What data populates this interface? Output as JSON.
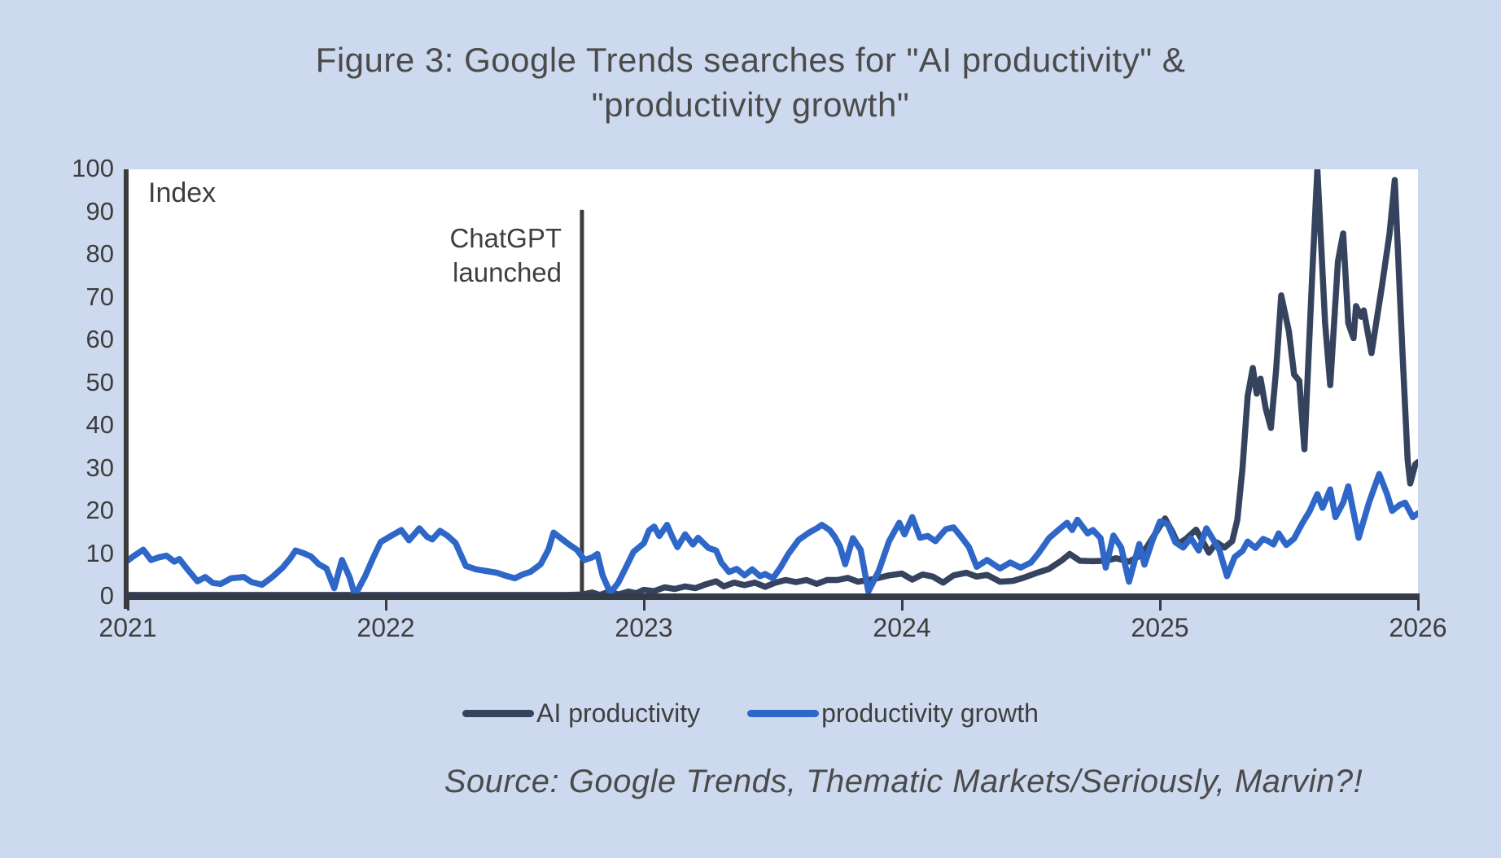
{
  "title": {
    "line1": "Figure 3: Google Trends searches for \"AI productivity\" &",
    "line2": "\"productivity growth\""
  },
  "axis": {
    "index_label": "Index",
    "y_ticks": [
      100,
      90,
      80,
      70,
      60,
      50,
      40,
      30,
      20,
      10,
      0
    ],
    "x_ticks": [
      2021,
      2022,
      2023,
      2024,
      2025,
      2026
    ]
  },
  "annotation": {
    "line1": "ChatGPT",
    "line2": "launched",
    "x_year": 2022.76,
    "top_value": 90.5,
    "line_color": "#3c3c3c"
  },
  "legend": [
    {
      "label": "AI productivity",
      "color": "#36435e"
    },
    {
      "label": "productivity growth",
      "color": "#2e67c8"
    }
  ],
  "source": "Source: Google Trends, Thematic Markets/Seriously, Marvin?!",
  "colors": {
    "background": "#cdd9ee",
    "plot_background": "#ffffff",
    "axis": "#3c3c3c",
    "text": "#3f3f3f",
    "title": "#4b4b4b",
    "ai_productivity": "#36435e",
    "productivity_growth": "#2e67c8"
  },
  "chart_data": {
    "type": "line",
    "title": "Figure 3: Google Trends searches for \"AI productivity\" & \"productivity growth\"",
    "xlabel": "",
    "ylabel": "Index",
    "x_range": [
      2021,
      2026
    ],
    "y_range": [
      0,
      100
    ],
    "grid": false,
    "legend_position": "bottom",
    "annotation": {
      "label": "ChatGPT launched",
      "x_year": 2022.76
    },
    "series": [
      {
        "name": "AI productivity",
        "color": "#36435e",
        "points": [
          [
            2021.0,
            0.4
          ],
          [
            2021.25,
            0.4
          ],
          [
            2021.5,
            0.4
          ],
          [
            2021.75,
            0.4
          ],
          [
            2022.0,
            0.4
          ],
          [
            2022.25,
            0.4
          ],
          [
            2022.5,
            0.4
          ],
          [
            2022.7,
            0.4
          ],
          [
            2022.76,
            0.5
          ],
          [
            2022.8,
            1.0
          ],
          [
            2022.83,
            0.4
          ],
          [
            2022.87,
            1.3
          ],
          [
            2022.9,
            0.5
          ],
          [
            2022.94,
            1.2
          ],
          [
            2022.97,
            0.8
          ],
          [
            2023.0,
            1.6
          ],
          [
            2023.04,
            1.3
          ],
          [
            2023.08,
            2.2
          ],
          [
            2023.12,
            1.8
          ],
          [
            2023.16,
            2.4
          ],
          [
            2023.2,
            2.0
          ],
          [
            2023.24,
            2.9
          ],
          [
            2023.28,
            3.6
          ],
          [
            2023.31,
            2.4
          ],
          [
            2023.35,
            3.3
          ],
          [
            2023.39,
            2.7
          ],
          [
            2023.43,
            3.3
          ],
          [
            2023.47,
            2.3
          ],
          [
            2023.51,
            3.3
          ],
          [
            2023.55,
            3.9
          ],
          [
            2023.59,
            3.4
          ],
          [
            2023.63,
            3.9
          ],
          [
            2023.67,
            3.0
          ],
          [
            2023.71,
            3.9
          ],
          [
            2023.75,
            3.9
          ],
          [
            2023.79,
            4.4
          ],
          [
            2023.83,
            3.5
          ],
          [
            2023.87,
            3.9
          ],
          [
            2023.91,
            4.4
          ],
          [
            2023.95,
            5.0
          ],
          [
            2024.0,
            5.4
          ],
          [
            2024.04,
            4.0
          ],
          [
            2024.08,
            5.2
          ],
          [
            2024.12,
            4.7
          ],
          [
            2024.16,
            3.3
          ],
          [
            2024.2,
            5.0
          ],
          [
            2024.25,
            5.6
          ],
          [
            2024.29,
            4.7
          ],
          [
            2024.33,
            5.1
          ],
          [
            2024.38,
            3.5
          ],
          [
            2024.43,
            3.7
          ],
          [
            2024.47,
            4.4
          ],
          [
            2024.52,
            5.5
          ],
          [
            2024.57,
            6.5
          ],
          [
            2024.62,
            8.5
          ],
          [
            2024.65,
            10.0
          ],
          [
            2024.69,
            8.4
          ],
          [
            2024.74,
            8.3
          ],
          [
            2024.79,
            8.4
          ],
          [
            2024.83,
            9.0
          ],
          [
            2024.88,
            8.2
          ],
          [
            2024.92,
            9.5
          ],
          [
            2024.95,
            11.7
          ],
          [
            2025.0,
            16.5
          ],
          [
            2025.02,
            18.3
          ],
          [
            2025.05,
            15.0
          ],
          [
            2025.07,
            12.3
          ],
          [
            2025.1,
            13.5
          ],
          [
            2025.14,
            15.7
          ],
          [
            2025.17,
            12.5
          ],
          [
            2025.19,
            10.3
          ],
          [
            2025.22,
            12.7
          ],
          [
            2025.25,
            11.5
          ],
          [
            2025.28,
            13.0
          ],
          [
            2025.3,
            18.0
          ],
          [
            2025.32,
            30.0
          ],
          [
            2025.34,
            47.0
          ],
          [
            2025.36,
            53.5
          ],
          [
            2025.375,
            47.5
          ],
          [
            2025.39,
            51.0
          ],
          [
            2025.41,
            44.0
          ],
          [
            2025.43,
            39.5
          ],
          [
            2025.45,
            53.0
          ],
          [
            2025.47,
            70.5
          ],
          [
            2025.5,
            62.0
          ],
          [
            2025.52,
            52.0
          ],
          [
            2025.54,
            50.5
          ],
          [
            2025.56,
            34.5
          ],
          [
            2025.59,
            75.0
          ],
          [
            2025.61,
            100.0
          ],
          [
            2025.64,
            64.0
          ],
          [
            2025.66,
            49.5
          ],
          [
            2025.69,
            78.5
          ],
          [
            2025.71,
            85.0
          ],
          [
            2025.73,
            64.0
          ],
          [
            2025.75,
            60.5
          ],
          [
            2025.76,
            68.0
          ],
          [
            2025.78,
            65.5
          ],
          [
            2025.79,
            67.0
          ],
          [
            2025.82,
            57.0
          ],
          [
            2025.86,
            72.5
          ],
          [
            2025.89,
            85.0
          ],
          [
            2025.91,
            97.5
          ],
          [
            2025.94,
            57.0
          ],
          [
            2025.96,
            32.0
          ],
          [
            2025.97,
            26.5
          ],
          [
            2025.99,
            31.0
          ],
          [
            2026.0,
            31.5
          ]
        ]
      },
      {
        "name": "productivity growth",
        "color": "#2e67c8",
        "points": [
          [
            2021.0,
            8.5
          ],
          [
            2021.03,
            9.8
          ],
          [
            2021.06,
            11.0
          ],
          [
            2021.09,
            8.6
          ],
          [
            2021.12,
            9.2
          ],
          [
            2021.15,
            9.6
          ],
          [
            2021.18,
            8.2
          ],
          [
            2021.2,
            8.8
          ],
          [
            2021.23,
            6.5
          ],
          [
            2021.27,
            3.6
          ],
          [
            2021.3,
            4.6
          ],
          [
            2021.33,
            3.2
          ],
          [
            2021.36,
            3.0
          ],
          [
            2021.4,
            4.3
          ],
          [
            2021.45,
            4.6
          ],
          [
            2021.48,
            3.4
          ],
          [
            2021.52,
            2.8
          ],
          [
            2021.56,
            4.6
          ],
          [
            2021.6,
            6.8
          ],
          [
            2021.63,
            9.0
          ],
          [
            2021.65,
            10.8
          ],
          [
            2021.68,
            10.2
          ],
          [
            2021.71,
            9.4
          ],
          [
            2021.74,
            7.6
          ],
          [
            2021.77,
            6.6
          ],
          [
            2021.8,
            2.0
          ],
          [
            2021.83,
            8.6
          ],
          [
            2021.86,
            4.5
          ],
          [
            2021.88,
            0.3
          ],
          [
            2021.92,
            4.8
          ],
          [
            2021.95,
            9.0
          ],
          [
            2021.98,
            12.8
          ],
          [
            2022.02,
            14.2
          ],
          [
            2022.06,
            15.6
          ],
          [
            2022.09,
            13.2
          ],
          [
            2022.13,
            16.0
          ],
          [
            2022.16,
            14.0
          ],
          [
            2022.18,
            13.4
          ],
          [
            2022.21,
            15.4
          ],
          [
            2022.24,
            14.2
          ],
          [
            2022.27,
            12.6
          ],
          [
            2022.31,
            7.2
          ],
          [
            2022.35,
            6.4
          ],
          [
            2022.39,
            6.0
          ],
          [
            2022.43,
            5.6
          ],
          [
            2022.47,
            4.8
          ],
          [
            2022.5,
            4.3
          ],
          [
            2022.53,
            5.2
          ],
          [
            2022.56,
            5.8
          ],
          [
            2022.6,
            7.6
          ],
          [
            2022.63,
            11.0
          ],
          [
            2022.65,
            15.0
          ],
          [
            2022.68,
            13.6
          ],
          [
            2022.71,
            12.2
          ],
          [
            2022.74,
            11.0
          ],
          [
            2022.77,
            8.6
          ],
          [
            2022.8,
            9.2
          ],
          [
            2022.82,
            10.0
          ],
          [
            2022.84,
            5.0
          ],
          [
            2022.87,
            0.9
          ],
          [
            2022.9,
            3.2
          ],
          [
            2022.93,
            6.8
          ],
          [
            2022.96,
            10.5
          ],
          [
            2023.0,
            12.5
          ],
          [
            2023.02,
            15.5
          ],
          [
            2023.04,
            16.4
          ],
          [
            2023.06,
            14.2
          ],
          [
            2023.09,
            16.8
          ],
          [
            2023.11,
            14.0
          ],
          [
            2023.13,
            11.6
          ],
          [
            2023.16,
            14.6
          ],
          [
            2023.19,
            12.2
          ],
          [
            2023.21,
            13.8
          ],
          [
            2023.25,
            11.4
          ],
          [
            2023.28,
            10.8
          ],
          [
            2023.3,
            8.0
          ],
          [
            2023.33,
            5.8
          ],
          [
            2023.36,
            6.5
          ],
          [
            2023.39,
            5.0
          ],
          [
            2023.42,
            6.4
          ],
          [
            2023.45,
            4.8
          ],
          [
            2023.47,
            5.3
          ],
          [
            2023.5,
            4.3
          ],
          [
            2023.53,
            6.9
          ],
          [
            2023.56,
            10.0
          ],
          [
            2023.6,
            13.3
          ],
          [
            2023.64,
            15.0
          ],
          [
            2023.67,
            16.0
          ],
          [
            2023.69,
            16.8
          ],
          [
            2023.72,
            15.6
          ],
          [
            2023.74,
            14.0
          ],
          [
            2023.76,
            11.8
          ],
          [
            2023.78,
            7.6
          ],
          [
            2023.81,
            13.7
          ],
          [
            2023.84,
            11.0
          ],
          [
            2023.87,
            1.2
          ],
          [
            2023.91,
            6.0
          ],
          [
            2023.95,
            13.0
          ],
          [
            2023.99,
            17.3
          ],
          [
            2024.01,
            14.6
          ],
          [
            2024.04,
            18.6
          ],
          [
            2024.07,
            13.8
          ],
          [
            2024.1,
            14.2
          ],
          [
            2024.13,
            13.0
          ],
          [
            2024.17,
            15.8
          ],
          [
            2024.2,
            16.2
          ],
          [
            2024.23,
            14.0
          ],
          [
            2024.26,
            11.6
          ],
          [
            2024.29,
            7.0
          ],
          [
            2024.33,
            8.6
          ],
          [
            2024.38,
            6.6
          ],
          [
            2024.42,
            8.0
          ],
          [
            2024.46,
            6.8
          ],
          [
            2024.5,
            8.0
          ],
          [
            2024.53,
            10.2
          ],
          [
            2024.57,
            13.7
          ],
          [
            2024.61,
            15.8
          ],
          [
            2024.64,
            17.3
          ],
          [
            2024.66,
            15.6
          ],
          [
            2024.68,
            18.0
          ],
          [
            2024.72,
            14.8
          ],
          [
            2024.74,
            15.6
          ],
          [
            2024.77,
            13.7
          ],
          [
            2024.79,
            6.8
          ],
          [
            2024.82,
            14.3
          ],
          [
            2024.85,
            11.5
          ],
          [
            2024.88,
            3.5
          ],
          [
            2024.92,
            12.3
          ],
          [
            2024.94,
            7.5
          ],
          [
            2024.97,
            13.0
          ],
          [
            2025.0,
            17.6
          ],
          [
            2025.03,
            17.0
          ],
          [
            2025.06,
            12.7
          ],
          [
            2025.09,
            11.5
          ],
          [
            2025.12,
            13.7
          ],
          [
            2025.15,
            10.8
          ],
          [
            2025.18,
            16.0
          ],
          [
            2025.21,
            13.0
          ],
          [
            2025.23,
            11.0
          ],
          [
            2025.26,
            4.8
          ],
          [
            2025.29,
            9.3
          ],
          [
            2025.32,
            10.7
          ],
          [
            2025.34,
            12.9
          ],
          [
            2025.37,
            11.4
          ],
          [
            2025.4,
            13.5
          ],
          [
            2025.42,
            13.0
          ],
          [
            2025.44,
            12.2
          ],
          [
            2025.46,
            14.8
          ],
          [
            2025.49,
            12.1
          ],
          [
            2025.52,
            13.6
          ],
          [
            2025.55,
            17.0
          ],
          [
            2025.58,
            20.0
          ],
          [
            2025.61,
            24.0
          ],
          [
            2025.63,
            20.8
          ],
          [
            2025.66,
            25.1
          ],
          [
            2025.68,
            18.6
          ],
          [
            2025.71,
            22.0
          ],
          [
            2025.73,
            25.8
          ],
          [
            2025.77,
            13.8
          ],
          [
            2025.81,
            22.0
          ],
          [
            2025.85,
            28.7
          ],
          [
            2025.88,
            24.0
          ],
          [
            2025.9,
            20.1
          ],
          [
            2025.93,
            21.5
          ],
          [
            2025.95,
            22.0
          ],
          [
            2025.98,
            18.6
          ],
          [
            2026.0,
            19.5
          ]
        ]
      }
    ]
  }
}
